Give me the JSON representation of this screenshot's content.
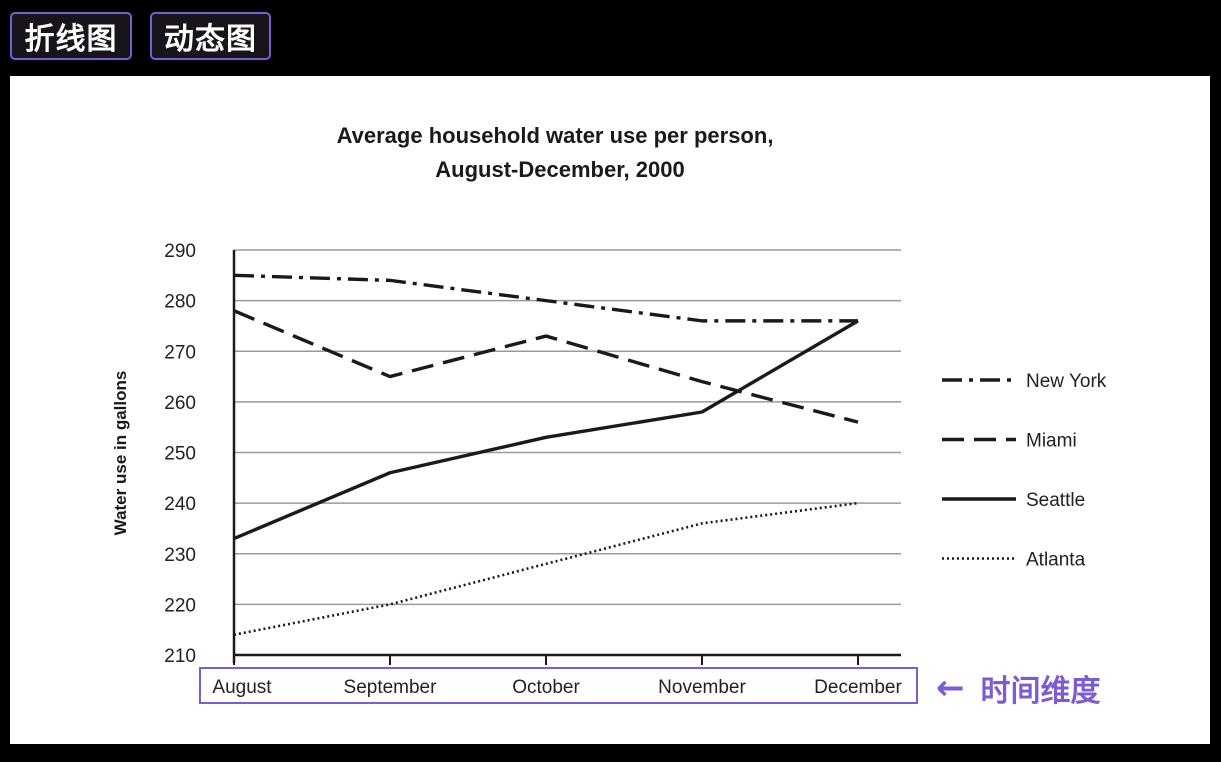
{
  "buttons": {
    "line_chart": "折线图",
    "dynamic_chart": "动态图"
  },
  "annotation": {
    "arrow": "←",
    "label": "时间维度"
  },
  "colors": {
    "accent": "#7d5bd0",
    "line": "#1a1a1a",
    "grid": "#9a9a9a"
  },
  "chart_data": {
    "type": "line",
    "title": "Average household water use per person,",
    "subtitle": "August-December, 2000",
    "xlabel": "",
    "ylabel": "Water use in gallons",
    "categories": [
      "August",
      "September",
      "October",
      "November",
      "December"
    ],
    "ylim": [
      210,
      290
    ],
    "yticks": [
      210,
      220,
      230,
      240,
      250,
      260,
      270,
      280,
      290
    ],
    "grid": true,
    "legend_position": "right",
    "series": [
      {
        "name": "New York",
        "style": "dashdot",
        "values": [
          285,
          284,
          280,
          276,
          276
        ]
      },
      {
        "name": "Miami",
        "style": "dashed",
        "values": [
          278,
          265,
          273,
          264,
          256
        ]
      },
      {
        "name": "Seattle",
        "style": "solid",
        "values": [
          233,
          246,
          253,
          258,
          276
        ]
      },
      {
        "name": "Atlanta",
        "style": "dotted",
        "values": [
          214,
          220,
          228,
          236,
          240
        ]
      }
    ]
  }
}
